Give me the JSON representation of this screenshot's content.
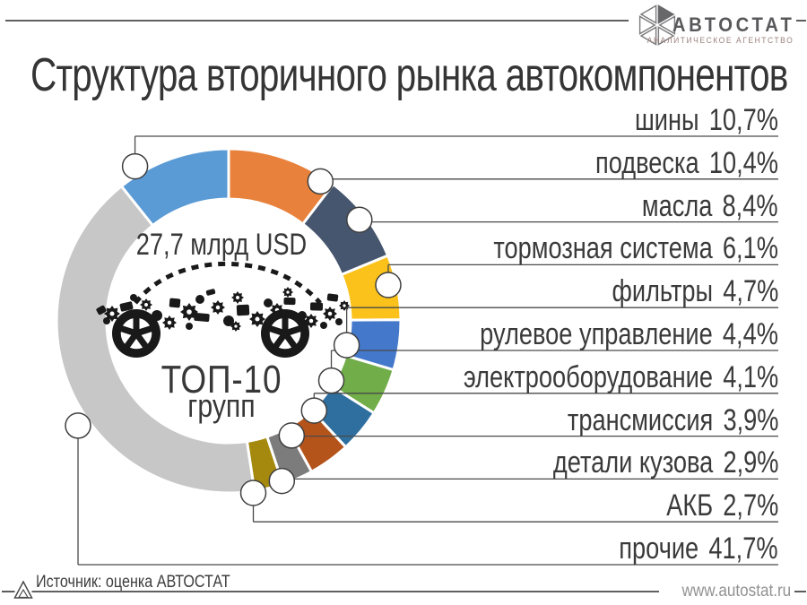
{
  "logo": {
    "name": "АВТОСТАТ",
    "subtitle": "АНАЛИТИЧЕСКОЕ АГЕНТСТВО",
    "mark": "hexagon-of-six-triangles, top-right triangle filled",
    "text_color": "#59595b",
    "subtitle_color": "#9b837c"
  },
  "title": "Структура вторичного рынка автокомпонентов",
  "center": {
    "market_value": "27,7 млрд USD",
    "top_line": "ТОП-10",
    "bottom_line": "групп",
    "illustration": "car-made-of-auto-parts-icon"
  },
  "footer": {
    "source": "Источник: оценка АВТОСТАТ",
    "website": "www.autostat.ru"
  },
  "chart_data": {
    "type": "pie",
    "subtype": "donut",
    "title": "Структура вторичного рынка автокомпонентов",
    "center_label": "27,7 млрд USD — ТОП-10 групп",
    "units": "%",
    "start_angle_deg": -38.5,
    "direction": "clockwise",
    "legend_position": "right",
    "segments": [
      {
        "label": "шины",
        "value": 10.7,
        "display": "10,7%",
        "color": "#5B9BD5"
      },
      {
        "label": "подвеска",
        "value": 10.4,
        "display": "10,4%",
        "color": "#E8813B"
      },
      {
        "label": "масла",
        "value": 8.4,
        "display": "8,4%",
        "color": "#46566F"
      },
      {
        "label": "тормозная система",
        "value": 6.1,
        "display": "6,1%",
        "color": "#FAC21B"
      },
      {
        "label": "фильтры",
        "value": 4.7,
        "display": "4,7%",
        "color": "#4478CB"
      },
      {
        "label": "рулевое управление",
        "value": 4.4,
        "display": "4,4%",
        "color": "#71AD48"
      },
      {
        "label": "электрооборудование",
        "value": 4.1,
        "display": "4,1%",
        "color": "#2E6F9F"
      },
      {
        "label": "трансмиссия",
        "value": 3.9,
        "display": "3,9%",
        "color": "#B4541B"
      },
      {
        "label": "детали кузова",
        "value": 2.9,
        "display": "2,9%",
        "color": "#7C7C7C"
      },
      {
        "label": "АКБ",
        "value": 2.7,
        "display": "2,7%",
        "color": "#A5890E"
      },
      {
        "label": "прочие",
        "value": 41.7,
        "display": "41,7%",
        "color": "#C7C7C7"
      }
    ]
  }
}
